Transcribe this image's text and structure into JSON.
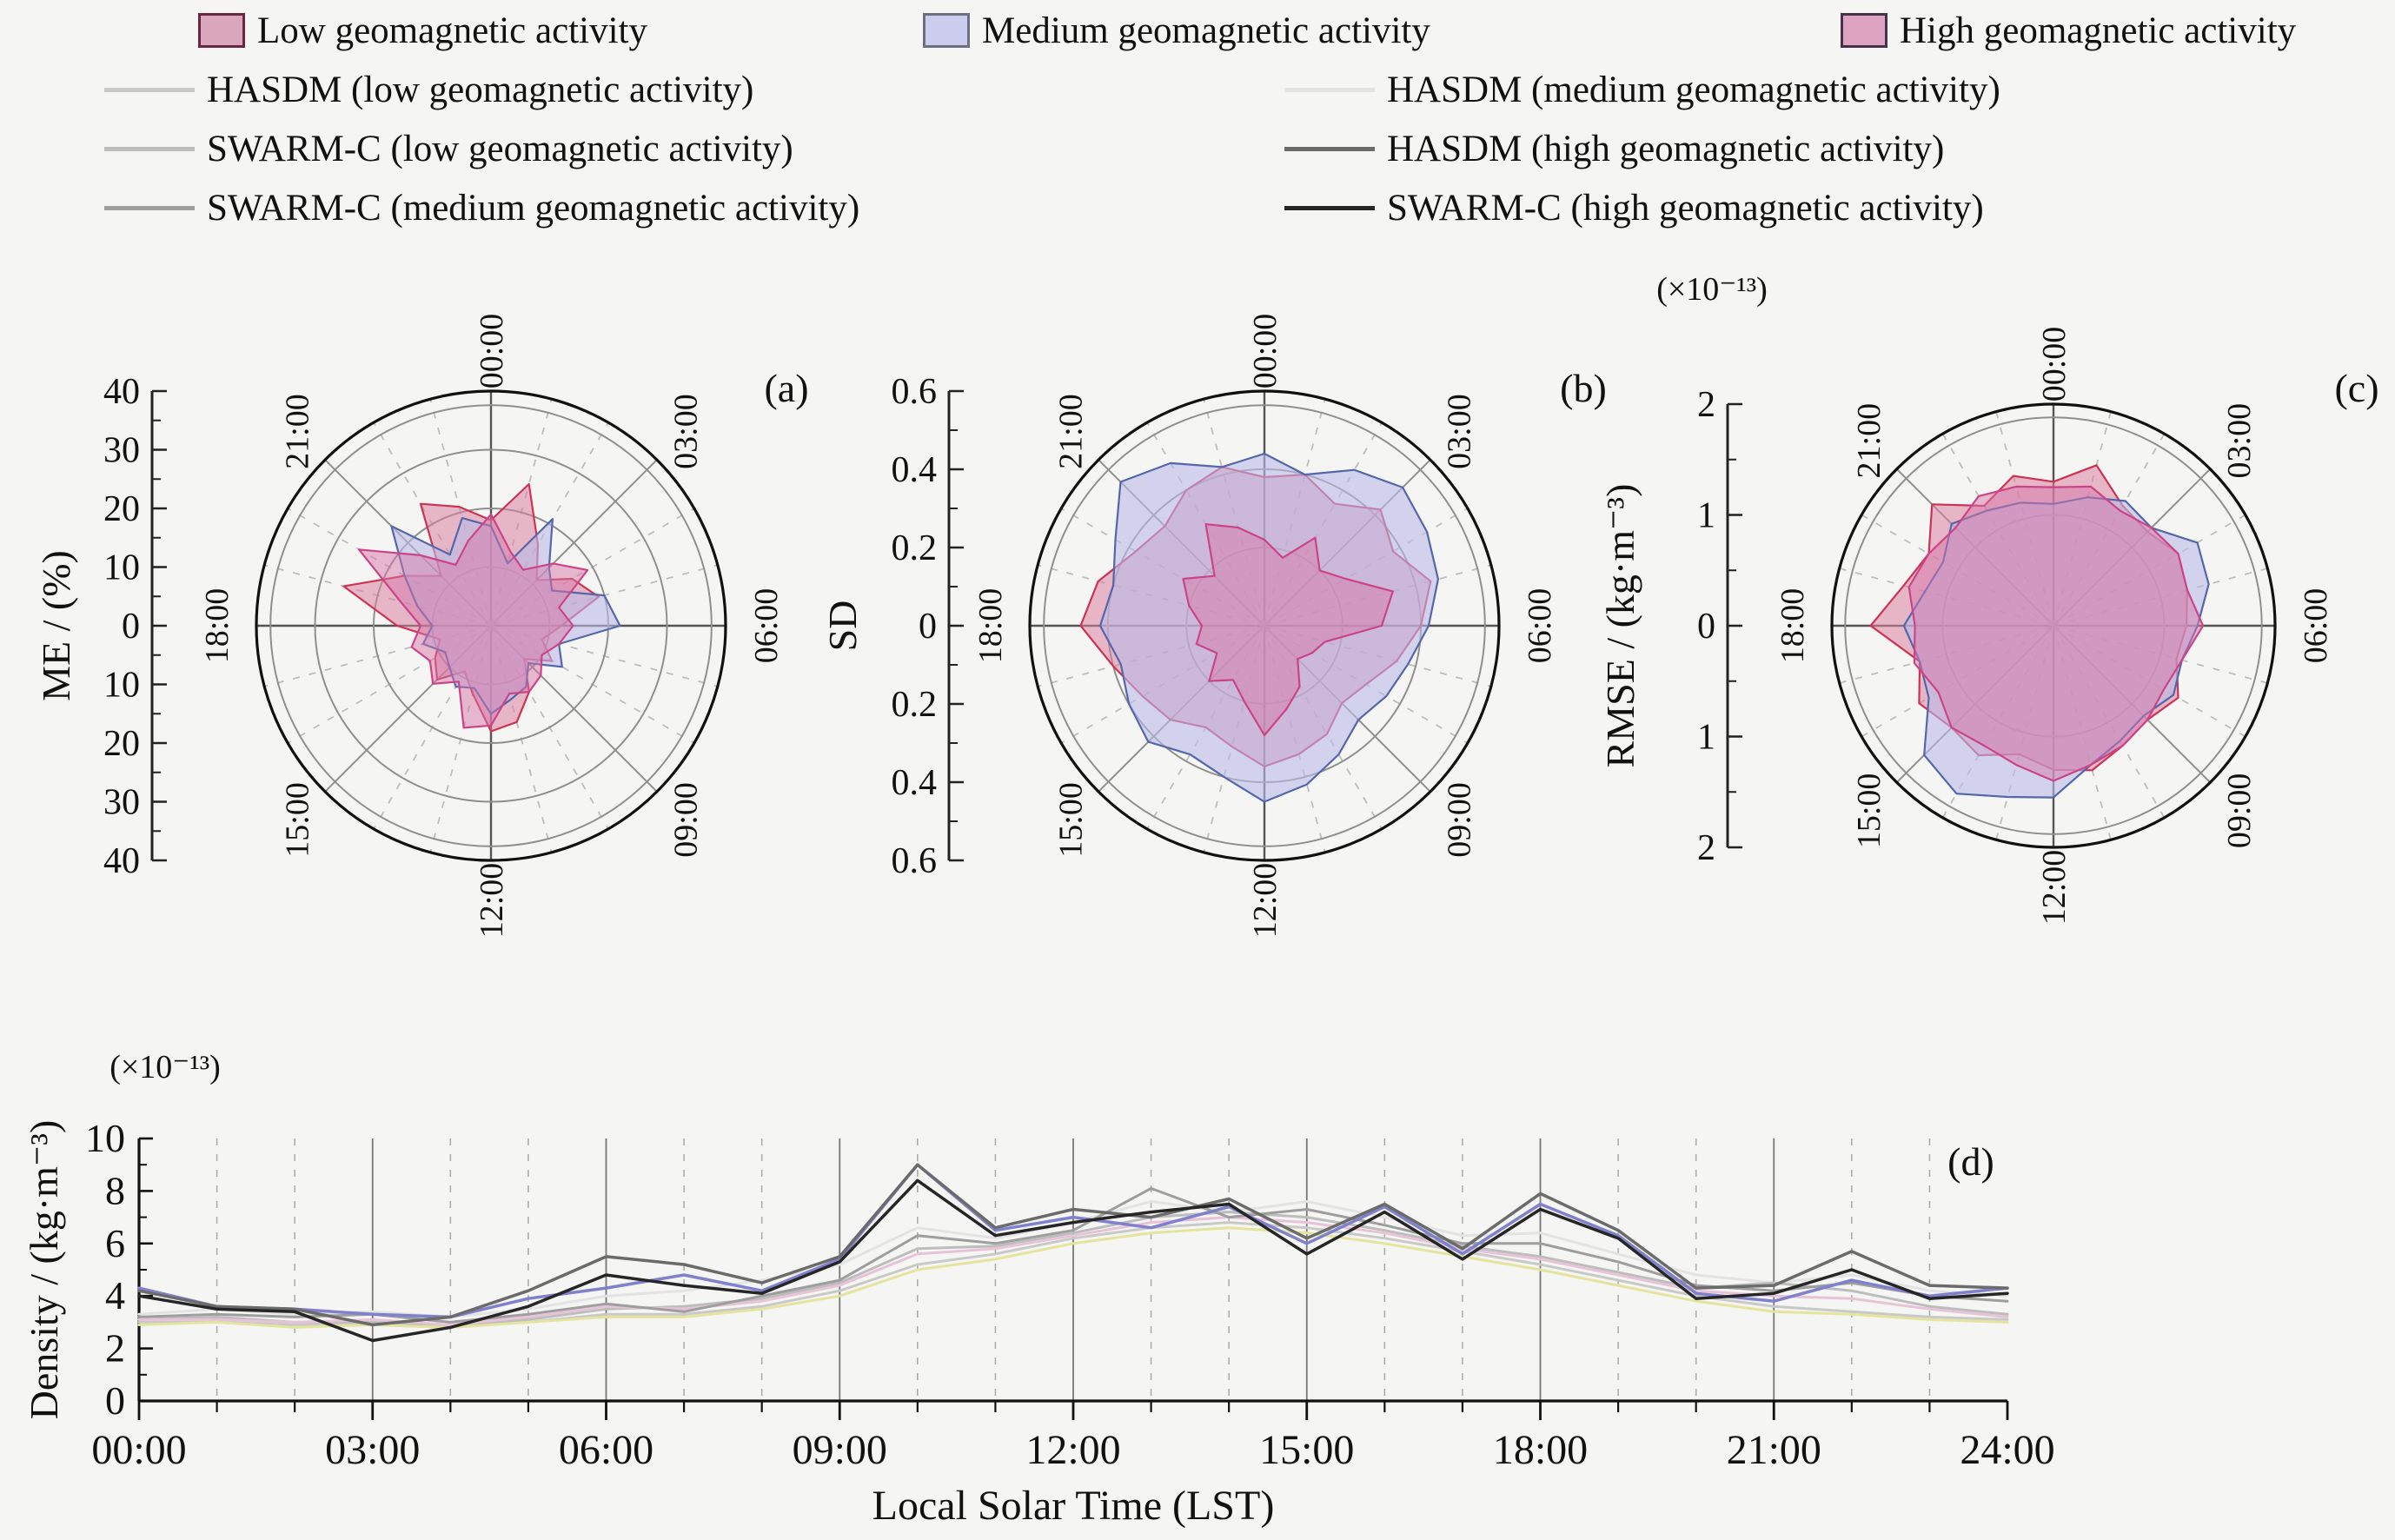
{
  "background": "#f5f5f3",
  "legend": {
    "fills": [
      {
        "label": "Low geomagnetic activity",
        "fill": "#d9a6bb",
        "stroke": "#69283f"
      },
      {
        "label": "Medium geomagnetic activity",
        "fill": "#ccccee",
        "stroke": "#6f6f82"
      },
      {
        "label": "High geomagnetic activity",
        "fill": "#dfa3c2",
        "stroke": "#473349"
      }
    ],
    "lines_left": [
      {
        "label": "HASDM (low geomagnetic activity)",
        "color": "#c9c9c9"
      },
      {
        "label": "SWARM-C (low geomagnetic activity)",
        "color": "#bdbdbd"
      },
      {
        "label": "SWARM-C (medium geomagnetic activity)",
        "color": "#9e9e9e"
      }
    ],
    "lines_right": [
      {
        "label": "HASDM (medium geomagnetic activity)",
        "color": "#e3e3e3"
      },
      {
        "label": "HASDM (high geomagnetic activity)",
        "color": "#6b6b6b"
      },
      {
        "label": "SWARM-C (high geomagnetic activity)",
        "color": "#262626"
      }
    ]
  },
  "chart_data": [
    {
      "id": "polar-me",
      "type": "radar",
      "panel": "(a)",
      "axis_label": "ME / (%)",
      "scale_note": "",
      "max": 40,
      "rticks": [
        "40",
        "30",
        "20",
        "10",
        "0",
        "10",
        "20",
        "30",
        "40"
      ],
      "ring_fracs": [
        0.25,
        0.5,
        0.75,
        0.94
      ],
      "angle_labels": [
        "00:00",
        "03:00",
        "06:00",
        "09:00",
        "12:00",
        "15:00",
        "18:00",
        "21:00"
      ],
      "series": [
        {
          "name": "Low geomagnetic activity",
          "fill": "rgba(216,130,160,0.55)",
          "stroke": "#cc3355",
          "values": [
            18,
            25,
            16,
            11,
            16,
            19,
            12,
            9,
            12,
            8,
            13,
            17,
            18,
            12,
            9,
            13,
            11,
            9,
            16,
            26,
            17,
            12,
            24,
            21
          ]
        },
        {
          "name": "Medium geomagnetic activity",
          "fill": "rgba(186,186,232,0.60)",
          "stroke": "#5566aa",
          "values": [
            17,
            11,
            21,
            14,
            12,
            20,
            22,
            12,
            14,
            9,
            12,
            13,
            15,
            11,
            12,
            10,
            9,
            12,
            10,
            13,
            17,
            24,
            14,
            19
          ]
        },
        {
          "name": "High geomagnetic activity",
          "fill": "rgba(214,120,170,0.50)",
          "stroke": "#cc4488",
          "values": [
            19,
            13,
            11,
            15,
            19,
            12,
            14,
            12,
            10,
            12,
            13,
            12,
            17,
            18,
            11,
            14,
            12,
            14,
            12,
            16,
            26,
            17,
            12,
            15
          ]
        }
      ]
    },
    {
      "id": "polar-sd",
      "type": "radar",
      "panel": "(b)",
      "axis_label": "SD",
      "scale_note": "",
      "max": 0.6,
      "rticks": [
        "0.6",
        "0.4",
        "0.2",
        "0",
        "0.2",
        "0.4",
        "0.6"
      ],
      "ring_fracs": [
        0.333,
        0.667,
        0.94
      ],
      "angle_labels": [
        "00:00",
        "03:00",
        "06:00",
        "09:00",
        "12:00",
        "15:00",
        "18:00",
        "21:00"
      ],
      "series": [
        {
          "name": "Low geomagnetic activity",
          "fill": "rgba(216,130,160,0.55)",
          "stroke": "#cc3355",
          "values": [
            0.38,
            0.4,
            0.36,
            0.42,
            0.38,
            0.44,
            0.4,
            0.35,
            0.3,
            0.28,
            0.32,
            0.34,
            0.36,
            0.32,
            0.3,
            0.34,
            0.36,
            0.4,
            0.47,
            0.44,
            0.38,
            0.36,
            0.4,
            0.42
          ]
        },
        {
          "name": "Medium geomagnetic activity",
          "fill": "rgba(186,186,232,0.60)",
          "stroke": "#5566aa",
          "values": [
            0.44,
            0.4,
            0.46,
            0.5,
            0.48,
            0.46,
            0.42,
            0.38,
            0.36,
            0.34,
            0.38,
            0.42,
            0.45,
            0.4,
            0.38,
            0.42,
            0.4,
            0.38,
            0.42,
            0.4,
            0.44,
            0.52,
            0.48,
            0.42
          ]
        },
        {
          "name": "High geomagnetic activity",
          "fill": "rgba(214,120,170,0.50)",
          "stroke": "#cc4488",
          "values": [
            0.22,
            0.18,
            0.26,
            0.2,
            0.24,
            0.34,
            0.3,
            0.16,
            0.14,
            0.12,
            0.18,
            0.22,
            0.28,
            0.2,
            0.16,
            0.2,
            0.14,
            0.18,
            0.16,
            0.2,
            0.24,
            0.18,
            0.3,
            0.26
          ]
        }
      ]
    },
    {
      "id": "polar-rmse",
      "type": "radar",
      "panel": "(c)",
      "axis_label": "RMSE / (kg·m⁻³)",
      "scale_note": "(×10⁻¹³)",
      "max": 2,
      "rticks": [
        "2",
        "1",
        "0",
        "1",
        "2"
      ],
      "ring_fracs": [
        0.5,
        0.94
      ],
      "angle_labels": [
        "00:00",
        "03:00",
        "06:00",
        "09:00",
        "12:00",
        "15:00",
        "18:00",
        "21:00"
      ],
      "series": [
        {
          "name": "Low geomagnetic activity",
          "fill": "rgba(216,130,160,0.55)",
          "stroke": "#cc3355",
          "values": [
            1.3,
            1.5,
            1.25,
            1.2,
            1.3,
            1.25,
            1.2,
            1.15,
            1.3,
            1.2,
            1.25,
            1.35,
            1.3,
            1.2,
            1.35,
            1.3,
            1.4,
            1.25,
            1.65,
            1.4,
            1.3,
            1.55,
            1.25,
            1.4
          ]
        },
        {
          "name": "Medium geomagnetic activity",
          "fill": "rgba(186,186,232,0.60)",
          "stroke": "#5566aa",
          "values": [
            1.1,
            1.2,
            1.3,
            1.25,
            1.5,
            1.45,
            1.3,
            1.2,
            1.25,
            1.15,
            1.2,
            1.3,
            1.55,
            1.6,
            1.75,
            1.65,
            1.3,
            1.25,
            1.35,
            1.2,
            1.15,
            1.3,
            1.2,
            1.15
          ]
        },
        {
          "name": "High geomagnetic activity",
          "fill": "rgba(214,120,170,0.50)",
          "stroke": "#cc4488",
          "values": [
            1.25,
            1.3,
            1.2,
            1.25,
            1.3,
            1.25,
            1.35,
            1.2,
            1.15,
            1.2,
            1.25,
            1.3,
            1.4,
            1.3,
            1.25,
            1.3,
            1.2,
            1.3,
            1.25,
            1.35,
            1.3,
            1.25,
            1.35,
            1.3
          ]
        }
      ]
    },
    {
      "id": "density-line",
      "type": "line",
      "panel": "(d)",
      "ylabel": "Density / (kg·m⁻³)",
      "scale_note": "(×10⁻¹³)",
      "xlabel": "Local Solar Time (LST)",
      "ylim": [
        0,
        10
      ],
      "yticks": [
        0,
        2,
        4,
        6,
        8,
        10
      ],
      "x_hours": [
        0,
        1,
        2,
        3,
        4,
        5,
        6,
        7,
        8,
        9,
        10,
        11,
        12,
        13,
        14,
        15,
        16,
        17,
        18,
        19,
        20,
        21,
        22,
        23,
        24
      ],
      "x_tick_labels": [
        "00:00",
        "03:00",
        "06:00",
        "09:00",
        "12:00",
        "15:00",
        "18:00",
        "21:00",
        "24:00"
      ],
      "series": [
        {
          "name": "HASDM (medium geomagnetic activity)",
          "color": "#e3e3e3",
          "width": 3,
          "values": [
            3.3,
            3.5,
            3.3,
            3.4,
            3.2,
            3.5,
            4.0,
            4.2,
            4.6,
            5.2,
            6.6,
            6.2,
            6.8,
            7.6,
            7.2,
            7.6,
            7.0,
            6.3,
            6.4,
            5.6,
            4.8,
            4.5,
            4.8,
            4.2,
            4.0
          ]
        },
        {
          "name": "HASDM (low geomagnetic activity)",
          "color": "#c9c9c9",
          "width": 3,
          "values": [
            3.0,
            3.0,
            2.9,
            2.9,
            2.8,
            3.0,
            3.3,
            3.3,
            3.6,
            4.2,
            5.2,
            5.6,
            6.2,
            6.6,
            6.8,
            6.6,
            6.2,
            5.7,
            5.2,
            4.6,
            4.0,
            3.6,
            3.4,
            3.2,
            3.1
          ]
        },
        {
          "name": "Low geomagnetic activity",
          "color": "#e4e49e",
          "width": 3,
          "values": [
            2.9,
            3.0,
            2.8,
            2.9,
            2.8,
            3.0,
            3.2,
            3.2,
            3.5,
            4.0,
            5.0,
            5.4,
            6.0,
            6.4,
            6.6,
            6.4,
            6.0,
            5.5,
            5.0,
            4.4,
            3.8,
            3.4,
            3.3,
            3.1,
            3.0
          ]
        },
        {
          "name": "SWARM-C (low geomagnetic activity)",
          "color": "#bdbdbd",
          "width": 3,
          "values": [
            3.1,
            3.2,
            3.0,
            3.0,
            2.9,
            3.1,
            3.5,
            3.6,
            3.9,
            4.5,
            5.8,
            5.9,
            6.4,
            7.0,
            7.2,
            7.0,
            6.5,
            5.9,
            5.5,
            4.9,
            4.3,
            4.5,
            4.2,
            3.6,
            3.3
          ]
        },
        {
          "name": "High geomagnetic activity",
          "color": "#e8c3d8",
          "width": 3,
          "values": [
            3.1,
            3.1,
            3.0,
            3.1,
            2.9,
            3.2,
            3.6,
            3.5,
            3.8,
            4.4,
            5.6,
            5.8,
            6.3,
            6.8,
            7.0,
            6.8,
            6.4,
            5.8,
            5.4,
            4.8,
            4.2,
            4.0,
            3.9,
            3.5,
            3.2
          ]
        },
        {
          "name": "SWARM-C (medium geomagnetic activity)",
          "color": "#9e9e9e",
          "width": 3,
          "values": [
            3.2,
            3.3,
            3.2,
            3.3,
            3.0,
            3.3,
            3.7,
            3.4,
            4.0,
            4.6,
            6.3,
            6.0,
            6.5,
            8.1,
            7.0,
            7.3,
            6.7,
            6.0,
            6.0,
            5.3,
            4.4,
            4.2,
            4.5,
            4.0,
            3.8
          ]
        },
        {
          "name": "Medium geomagnetic activity",
          "color": "#8080cc",
          "width": 3.5,
          "values": [
            4.3,
            3.6,
            3.5,
            3.3,
            3.2,
            3.9,
            4.3,
            4.8,
            4.2,
            5.4,
            9.0,
            6.5,
            7.0,
            6.6,
            7.4,
            6.0,
            7.4,
            5.6,
            7.5,
            6.3,
            4.1,
            3.8,
            4.6,
            4.0,
            4.3
          ]
        },
        {
          "name": "HASDM (high geomagnetic activity)",
          "color": "#6b6b6b",
          "width": 3.5,
          "values": [
            4.2,
            3.6,
            3.5,
            2.9,
            3.2,
            4.2,
            5.5,
            5.2,
            4.5,
            5.5,
            9.0,
            6.6,
            7.3,
            7.0,
            7.7,
            6.2,
            7.5,
            5.8,
            7.9,
            6.5,
            4.3,
            4.4,
            5.7,
            4.4,
            4.3
          ]
        },
        {
          "name": "SWARM-C (high geomagnetic activity)",
          "color": "#262626",
          "width": 3.5,
          "values": [
            4.0,
            3.5,
            3.4,
            2.3,
            2.8,
            3.6,
            4.8,
            4.4,
            4.1,
            5.3,
            8.4,
            6.3,
            6.8,
            7.2,
            7.5,
            5.6,
            7.2,
            5.4,
            7.3,
            6.2,
            3.9,
            4.1,
            5.0,
            3.9,
            4.1
          ]
        }
      ]
    }
  ]
}
